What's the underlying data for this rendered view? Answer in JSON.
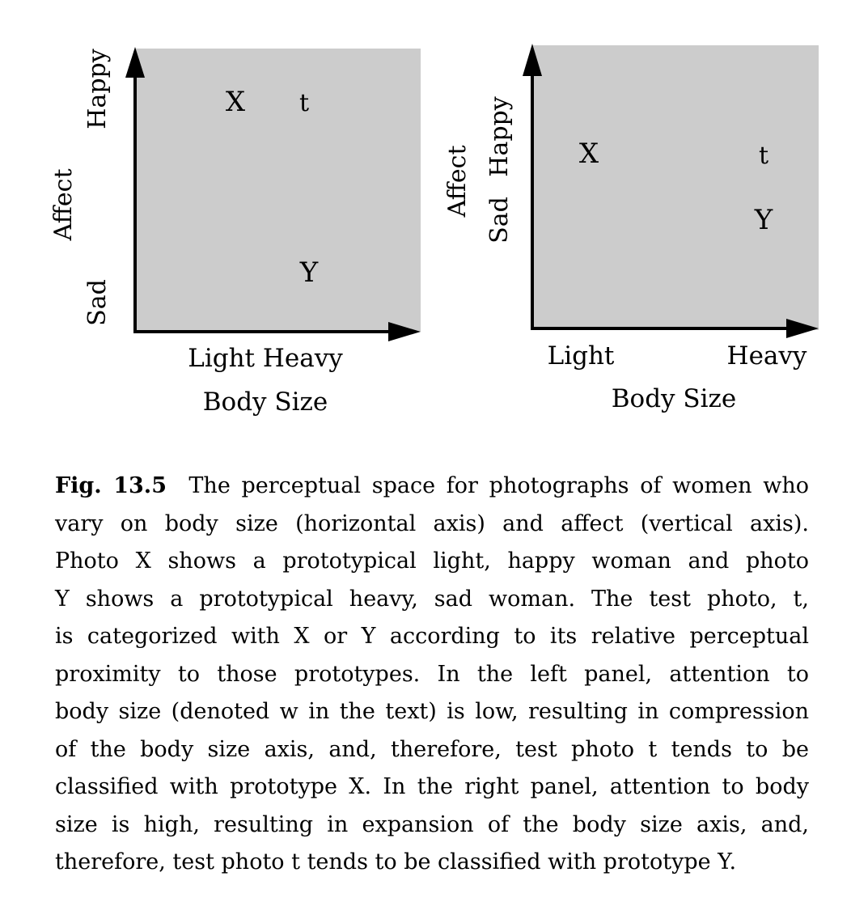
{
  "left_panel": {
    "y_label": "Affect",
    "y_top": "Happy",
    "y_bottom": "Sad",
    "x_labels": "Light Heavy",
    "x_title": "Body Size",
    "points": {
      "X": "X",
      "t": "t",
      "Y": "Y"
    }
  },
  "right_panel": {
    "y_label": "Affect",
    "y_top": "Happy",
    "y_bottom": "Sad",
    "x_light": "Light",
    "x_heavy": "Heavy",
    "x_title": "Body Size",
    "points": {
      "X": "X",
      "t": "t",
      "Y": "Y"
    }
  },
  "colors": {
    "plot_fill": "#cccccc",
    "axis": "#000000"
  },
  "caption": {
    "label": "Fig. 13.5",
    "lines": [
      "The perceptual space for photographs of women who",
      "vary on body size (horizontal axis) and affect (vertical axis).",
      "Photo X shows a prototypical light, happy woman and photo",
      "Y shows a prototypical heavy, sad woman. The test photo, t,",
      "is categorized with X or Y according to its relative perceptual",
      "proximity to those prototypes. In the left panel, attention to",
      "body size (denoted w in the text) is low, resulting in compression",
      "of the body size axis, and, therefore, test photo t tends to be",
      "classified with prototype X. In the right panel, attention to body",
      "size is high, resulting in expansion of the body size axis, and,",
      "therefore, test photo t tends to be classified with prototype Y."
    ]
  }
}
